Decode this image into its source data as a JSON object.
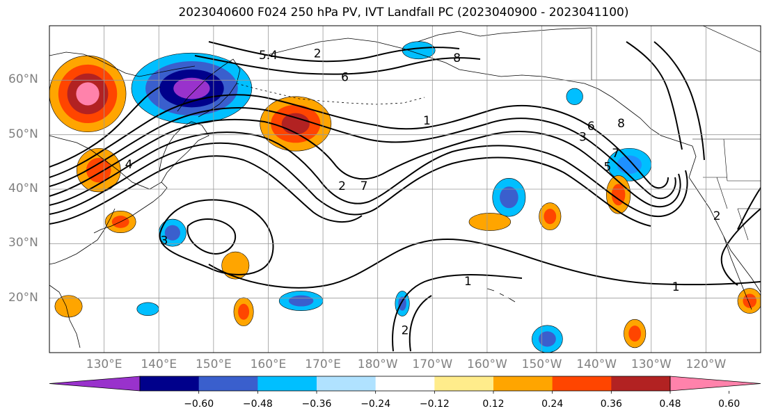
{
  "title": "2023040600 F024 250 hPa PV, IVT Landfall PC (2023040900 - 2023041100)",
  "map": {
    "lon_range": [
      120,
      250
    ],
    "lat_range": [
      10,
      70
    ],
    "grid_lons": [
      130,
      140,
      150,
      160,
      170,
      180,
      190,
      200,
      210,
      220,
      230,
      240
    ],
    "grid_lats": [
      20,
      30,
      40,
      50,
      60
    ]
  },
  "latitude_labels": [
    {
      "lat": 60,
      "text": "60°N"
    },
    {
      "lat": 50,
      "text": "50°N"
    },
    {
      "lat": 40,
      "text": "40°N"
    },
    {
      "lat": 30,
      "text": "30°N"
    },
    {
      "lat": 20,
      "text": "20°N"
    }
  ],
  "longitude_labels": [
    {
      "lon": 130,
      "text": "130°E"
    },
    {
      "lon": 140,
      "text": "140°E"
    },
    {
      "lon": 150,
      "text": "150°E"
    },
    {
      "lon": 160,
      "text": "160°E"
    },
    {
      "lon": 170,
      "text": "170°E"
    },
    {
      "lon": 180,
      "text": "180°W"
    },
    {
      "lon": 190,
      "text": "170°W"
    },
    {
      "lon": 200,
      "text": "160°W"
    },
    {
      "lon": 210,
      "text": "150°W"
    },
    {
      "lon": 220,
      "text": "140°W"
    },
    {
      "lon": 230,
      "text": "130°W"
    },
    {
      "lon": 240,
      "text": "120°W"
    }
  ],
  "colorbar": {
    "colors": [
      "#9932cc",
      "#00008b",
      "#3a5fcd",
      "#00bfff",
      "#b0e2ff",
      "#ffffff",
      "#ffec8b",
      "#ffa500",
      "#ff4500",
      "#b22222",
      "#ff82ab"
    ],
    "tick_values": [
      -0.6,
      -0.48,
      -0.36,
      -0.24,
      -0.12,
      0.12,
      0.24,
      0.36,
      0.48,
      0.6
    ],
    "tick_labels": [
      "−0.60",
      "−0.48",
      "−0.36",
      "−0.24",
      "−0.12",
      "0.12",
      "0.24",
      "0.36",
      "0.48",
      "0.60"
    ]
  },
  "shaded_features": [
    {
      "name": "kamchatka-negative",
      "lon": 146,
      "lat": 58.5,
      "rx": 11,
      "ry": 6.5,
      "levels": [
        "#00bfff",
        "#3a5fcd",
        "#00008b",
        "#9932cc"
      ]
    },
    {
      "name": "siberia-positive",
      "lon": 127,
      "lat": 57.5,
      "rx": 7,
      "ry": 7,
      "levels": [
        "#ffa500",
        "#ff4500",
        "#b22222",
        "#ff82ab"
      ]
    },
    {
      "name": "aleutian-positive",
      "lon": 165,
      "lat": 52,
      "rx": 6.5,
      "ry": 5,
      "levels": [
        "#ffa500",
        "#ff4500",
        "#b22222"
      ]
    },
    {
      "name": "westcoast-negative",
      "lon": 226,
      "lat": 44.5,
      "rx": 4,
      "ry": 3,
      "levels": [
        "#00bfff",
        "#1e90ff"
      ]
    },
    {
      "name": "offshore-positive",
      "lon": 224,
      "lat": 39,
      "rx": 2.2,
      "ry": 3.5,
      "levels": [
        "#ffa500",
        "#ff4500"
      ]
    },
    {
      "name": "central-negative",
      "lon": 204,
      "lat": 38.5,
      "rx": 3,
      "ry": 3.5,
      "levels": [
        "#00bfff",
        "#3a5fcd"
      ]
    },
    {
      "name": "japan-positive",
      "lon": 129,
      "lat": 43.5,
      "rx": 4,
      "ry": 4,
      "levels": [
        "#ffa500",
        "#ff4500"
      ]
    },
    {
      "name": "south-positive-1",
      "lon": 154,
      "lat": 26,
      "rx": 2.5,
      "ry": 2.5,
      "levels": [
        "#ffa500"
      ]
    },
    {
      "name": "south-positive-2",
      "lon": 155.5,
      "lat": 17.5,
      "rx": 1.8,
      "ry": 2.6,
      "levels": [
        "#ffa500",
        "#ff4500"
      ]
    },
    {
      "name": "south-negative-1",
      "lon": 142.5,
      "lat": 32,
      "rx": 2.5,
      "ry": 2.5,
      "levels": [
        "#00bfff",
        "#3a5fcd"
      ]
    },
    {
      "name": "south-negative-2",
      "lon": 166,
      "lat": 19.5,
      "rx": 4,
      "ry": 1.8,
      "levels": [
        "#00bfff",
        "#3a5fcd"
      ]
    },
    {
      "name": "tropic-negative",
      "lon": 184.5,
      "lat": 19,
      "rx": 1.3,
      "ry": 2.3,
      "levels": [
        "#00bfff",
        "#3a5fcd"
      ]
    },
    {
      "name": "se-negative",
      "lon": 211,
      "lat": 12.5,
      "rx": 2.8,
      "ry": 2.5,
      "levels": [
        "#00bfff",
        "#3a5fcd"
      ]
    },
    {
      "name": "se-positive",
      "lon": 227,
      "lat": 13.5,
      "rx": 2,
      "ry": 2.6,
      "levels": [
        "#ffa500",
        "#ff4500"
      ]
    },
    {
      "name": "mid-positive",
      "lon": 200.5,
      "lat": 34,
      "rx": 3.8,
      "ry": 1.6,
      "levels": [
        "#ffa500"
      ]
    },
    {
      "name": "mid-positive-2",
      "lon": 211.5,
      "lat": 35,
      "rx": 2,
      "ry": 2.5,
      "levels": [
        "#ffa500",
        "#ff4500"
      ]
    },
    {
      "name": "east-positive",
      "lon": 248,
      "lat": 19.5,
      "rx": 2.2,
      "ry": 2.3,
      "levels": [
        "#ffa500",
        "#ff4500"
      ]
    },
    {
      "name": "japan-sea-positive",
      "lon": 133,
      "lat": 34,
      "rx": 2.8,
      "ry": 2,
      "levels": [
        "#ffa500",
        "#ff4500"
      ]
    },
    {
      "name": "arctic-negative",
      "lon": 187.5,
      "lat": 65.5,
      "rx": 3,
      "ry": 1.6,
      "levels": [
        "#00bfff"
      ]
    },
    {
      "name": "gulf-negative",
      "lon": 216,
      "lat": 57,
      "rx": 1.5,
      "ry": 1.5,
      "levels": [
        "#00bfff"
      ]
    },
    {
      "name": "southwest-negative",
      "lon": 138,
      "lat": 18,
      "rx": 2,
      "ry": 1.2,
      "levels": [
        "#00bfff"
      ]
    },
    {
      "name": "southwest-positive",
      "lon": 123.5,
      "lat": 18.5,
      "rx": 2.5,
      "ry": 2,
      "levels": [
        "#ffa500"
      ]
    }
  ],
  "contour_labels": [
    {
      "lon": 160,
      "lat": 64.5,
      "text": "5.4"
    },
    {
      "lon": 169,
      "lat": 64.8,
      "text": "2"
    },
    {
      "lon": 174,
      "lat": 60.5,
      "text": "6"
    },
    {
      "lon": 194.5,
      "lat": 64,
      "text": "8"
    },
    {
      "lon": 189,
      "lat": 52.5,
      "text": "1"
    },
    {
      "lon": 224.5,
      "lat": 52,
      "text": "8"
    },
    {
      "lon": 217.5,
      "lat": 49.5,
      "text": "3"
    },
    {
      "lon": 219,
      "lat": 51.5,
      "text": "6"
    },
    {
      "lon": 223.5,
      "lat": 46.5,
      "text": "7"
    },
    {
      "lon": 222,
      "lat": 44,
      "text": "5"
    },
    {
      "lon": 173.5,
      "lat": 40.5,
      "text": "2"
    },
    {
      "lon": 177.5,
      "lat": 40.5,
      "text": "7"
    },
    {
      "lon": 134.5,
      "lat": 44.5,
      "text": "4"
    },
    {
      "lon": 141,
      "lat": 30.5,
      "text": "3"
    },
    {
      "lon": 196.5,
      "lat": 23,
      "text": "1"
    },
    {
      "lon": 234.5,
      "lat": 22,
      "text": "1"
    },
    {
      "lon": 185,
      "lat": 14,
      "text": "2"
    },
    {
      "lon": 242,
      "lat": 35,
      "text": "2"
    }
  ]
}
